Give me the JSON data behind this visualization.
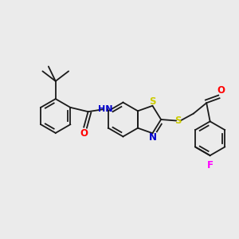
{
  "background_color": "#ebebeb",
  "bond_color": "#1a1a1a",
  "atom_colors": {
    "S": "#cccc00",
    "N": "#0000cd",
    "O": "#ff0000",
    "F": "#ff00ff",
    "C": "#1a1a1a"
  },
  "figsize": [
    3.0,
    3.0
  ],
  "dpi": 100
}
